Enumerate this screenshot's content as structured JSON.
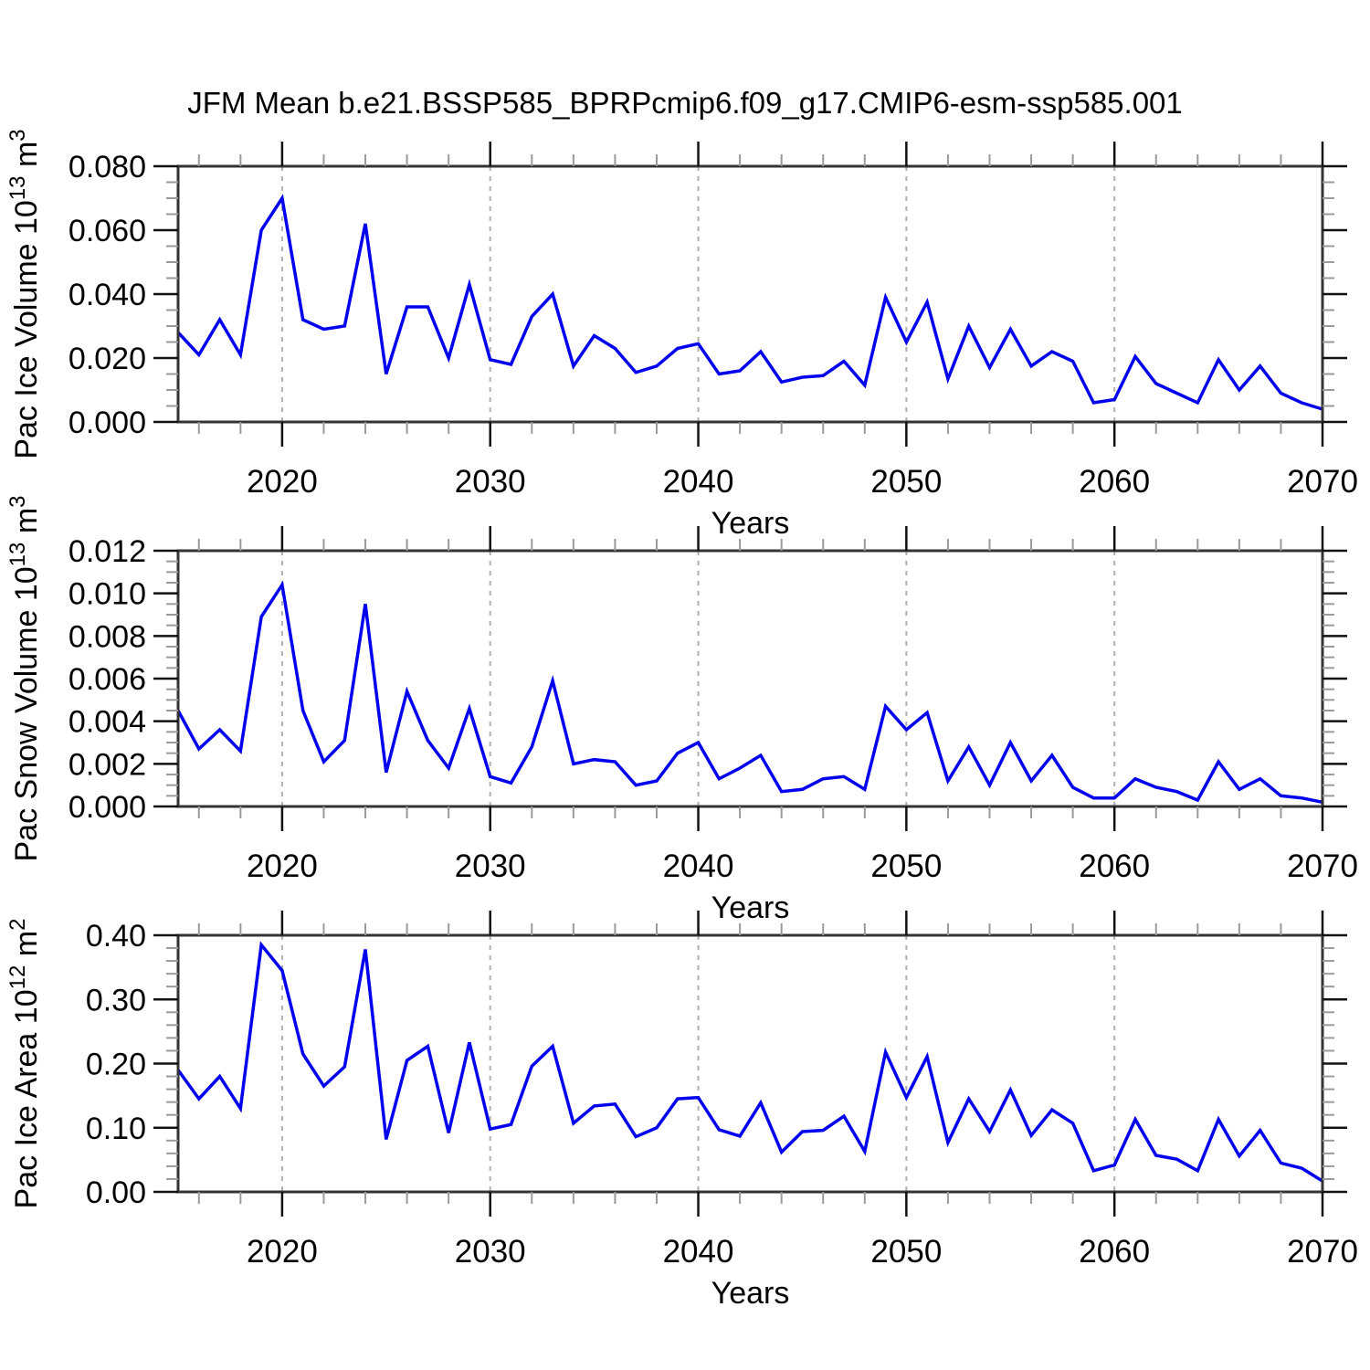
{
  "title": "JFM Mean b.e21.BSSP585_BPRPcmip6.f09_g17.CMIP6-esm-ssp585.001",
  "colors": {
    "line": "#0000ee",
    "grid": "#b0b0b0",
    "axis_box": "#333333",
    "major_tick": "#111111",
    "minor_tick": "#9a9a9a",
    "text": "#000000",
    "background": "#ffffff"
  },
  "chart_data": [
    {
      "type": "line",
      "name": "pac-ice-volume",
      "ylabel_parts": [
        "Pac Ice Volume 10",
        {
          "sup": "13"
        },
        " m",
        {
          "sup": "3"
        }
      ],
      "xlabel": "Years",
      "x": [
        2015,
        2016,
        2017,
        2018,
        2019,
        2020,
        2021,
        2022,
        2023,
        2024,
        2025,
        2026,
        2027,
        2028,
        2029,
        2030,
        2031,
        2032,
        2033,
        2034,
        2035,
        2036,
        2037,
        2038,
        2039,
        2040,
        2041,
        2042,
        2043,
        2044,
        2045,
        2046,
        2047,
        2048,
        2049,
        2050,
        2051,
        2052,
        2053,
        2054,
        2055,
        2056,
        2057,
        2058,
        2059,
        2060,
        2061,
        2062,
        2063,
        2064,
        2065,
        2066,
        2067,
        2068,
        2069,
        2070
      ],
      "values": [
        0.028,
        0.021,
        0.032,
        0.021,
        0.06,
        0.07,
        0.032,
        0.029,
        0.03,
        0.062,
        0.015,
        0.036,
        0.036,
        0.02,
        0.043,
        0.0195,
        0.018,
        0.033,
        0.04,
        0.0175,
        0.027,
        0.023,
        0.0155,
        0.0175,
        0.023,
        0.0245,
        0.015,
        0.016,
        0.022,
        0.0125,
        0.014,
        0.0145,
        0.019,
        0.0115,
        0.039,
        0.025,
        0.0375,
        0.0135,
        0.03,
        0.017,
        0.029,
        0.0175,
        0.022,
        0.019,
        0.006,
        0.007,
        0.0205,
        0.012,
        0.009,
        0.006,
        0.0195,
        0.01,
        0.0175,
        0.009,
        0.006,
        0.004
      ],
      "ylim": [
        0,
        0.08
      ],
      "yticks": [
        0,
        0.02,
        0.04,
        0.06,
        0.08
      ],
      "ytick_labels": [
        "0.000",
        "0.020",
        "0.040",
        "0.060",
        "0.080"
      ],
      "ytick_step": 0.02,
      "yminor_step": 0.005,
      "xlim": [
        2015,
        2070
      ],
      "xticks": [
        2020,
        2030,
        2040,
        2050,
        2060,
        2070
      ],
      "xtick_labels": [
        "2020",
        "2030",
        "2040",
        "2050",
        "2060",
        "2070"
      ],
      "xminor_step": 2,
      "gridlines_x": [
        2020,
        2030,
        2040,
        2050,
        2060
      ],
      "grid": "vertical-dashed",
      "legend": "none"
    },
    {
      "type": "line",
      "name": "pac-snow-volume",
      "ylabel_parts": [
        "Pac Snow Volume 10",
        {
          "sup": "13"
        },
        " m",
        {
          "sup": "3"
        }
      ],
      "xlabel": "Years",
      "x": [
        2015,
        2016,
        2017,
        2018,
        2019,
        2020,
        2021,
        2022,
        2023,
        2024,
        2025,
        2026,
        2027,
        2028,
        2029,
        2030,
        2031,
        2032,
        2033,
        2034,
        2035,
        2036,
        2037,
        2038,
        2039,
        2040,
        2041,
        2042,
        2043,
        2044,
        2045,
        2046,
        2047,
        2048,
        2049,
        2050,
        2051,
        2052,
        2053,
        2054,
        2055,
        2056,
        2057,
        2058,
        2059,
        2060,
        2061,
        2062,
        2063,
        2064,
        2065,
        2066,
        2067,
        2068,
        2069,
        2070
      ],
      "values": [
        0.0045,
        0.0027,
        0.0036,
        0.0026,
        0.0089,
        0.0104,
        0.0045,
        0.0021,
        0.0031,
        0.0095,
        0.0016,
        0.0054,
        0.0031,
        0.0018,
        0.0046,
        0.0014,
        0.0011,
        0.0028,
        0.0059,
        0.002,
        0.0022,
        0.0021,
        0.001,
        0.0012,
        0.0025,
        0.003,
        0.0013,
        0.0018,
        0.0024,
        0.0007,
        0.0008,
        0.0013,
        0.0014,
        0.0008,
        0.0047,
        0.0036,
        0.0044,
        0.0012,
        0.0028,
        0.001,
        0.003,
        0.0012,
        0.0024,
        0.0009,
        0.0004,
        0.0004,
        0.0013,
        0.0009,
        0.0007,
        0.0003,
        0.0021,
        0.0008,
        0.0013,
        0.0005,
        0.0004,
        0.0002
      ],
      "ylim": [
        0,
        0.012
      ],
      "yticks": [
        0,
        0.002,
        0.004,
        0.006,
        0.008,
        0.01,
        0.012
      ],
      "ytick_labels": [
        "0.000",
        "0.002",
        "0.004",
        "0.006",
        "0.008",
        "0.010",
        "0.012"
      ],
      "ytick_step": 0.002,
      "yminor_step": 0.0005,
      "xlim": [
        2015,
        2070
      ],
      "xticks": [
        2020,
        2030,
        2040,
        2050,
        2060,
        2070
      ],
      "xtick_labels": [
        "2020",
        "2030",
        "2040",
        "2050",
        "2060",
        "2070"
      ],
      "xminor_step": 2,
      "gridlines_x": [
        2020,
        2030,
        2040,
        2050,
        2060
      ],
      "grid": "vertical-dashed",
      "legend": "none"
    },
    {
      "type": "line",
      "name": "pac-ice-area",
      "ylabel_parts": [
        "Pac Ice Area 10",
        {
          "sup": "12"
        },
        " m",
        {
          "sup": "2"
        }
      ],
      "xlabel": "Years",
      "x": [
        2015,
        2016,
        2017,
        2018,
        2019,
        2020,
        2021,
        2022,
        2023,
        2024,
        2025,
        2026,
        2027,
        2028,
        2029,
        2030,
        2031,
        2032,
        2033,
        2034,
        2035,
        2036,
        2037,
        2038,
        2039,
        2040,
        2041,
        2042,
        2043,
        2044,
        2045,
        2046,
        2047,
        2048,
        2049,
        2050,
        2051,
        2052,
        2053,
        2054,
        2055,
        2056,
        2057,
        2058,
        2059,
        2060,
        2061,
        2062,
        2063,
        2064,
        2065,
        2066,
        2067,
        2068,
        2069,
        2070
      ],
      "values": [
        0.19,
        0.145,
        0.18,
        0.13,
        0.385,
        0.345,
        0.215,
        0.165,
        0.195,
        0.378,
        0.082,
        0.205,
        0.227,
        0.092,
        0.233,
        0.098,
        0.105,
        0.196,
        0.227,
        0.107,
        0.134,
        0.137,
        0.086,
        0.1,
        0.145,
        0.147,
        0.097,
        0.087,
        0.139,
        0.062,
        0.094,
        0.096,
        0.118,
        0.063,
        0.218,
        0.147,
        0.211,
        0.077,
        0.145,
        0.094,
        0.159,
        0.088,
        0.128,
        0.107,
        0.033,
        0.042,
        0.113,
        0.057,
        0.051,
        0.033,
        0.113,
        0.056,
        0.096,
        0.045,
        0.037,
        0.017
      ],
      "ylim": [
        0,
        0.4
      ],
      "yticks": [
        0,
        0.1,
        0.2,
        0.3,
        0.4
      ],
      "ytick_labels": [
        "0.00",
        "0.10",
        "0.20",
        "0.30",
        "0.40"
      ],
      "ytick_step": 0.1,
      "yminor_step": 0.02,
      "xlim": [
        2015,
        2070
      ],
      "xticks": [
        2020,
        2030,
        2040,
        2050,
        2060,
        2070
      ],
      "xtick_labels": [
        "2020",
        "2030",
        "2040",
        "2050",
        "2060",
        "2070"
      ],
      "xminor_step": 2,
      "gridlines_x": [
        2020,
        2030,
        2040,
        2050,
        2060
      ],
      "grid": "vertical-dashed",
      "legend": "none"
    }
  ]
}
